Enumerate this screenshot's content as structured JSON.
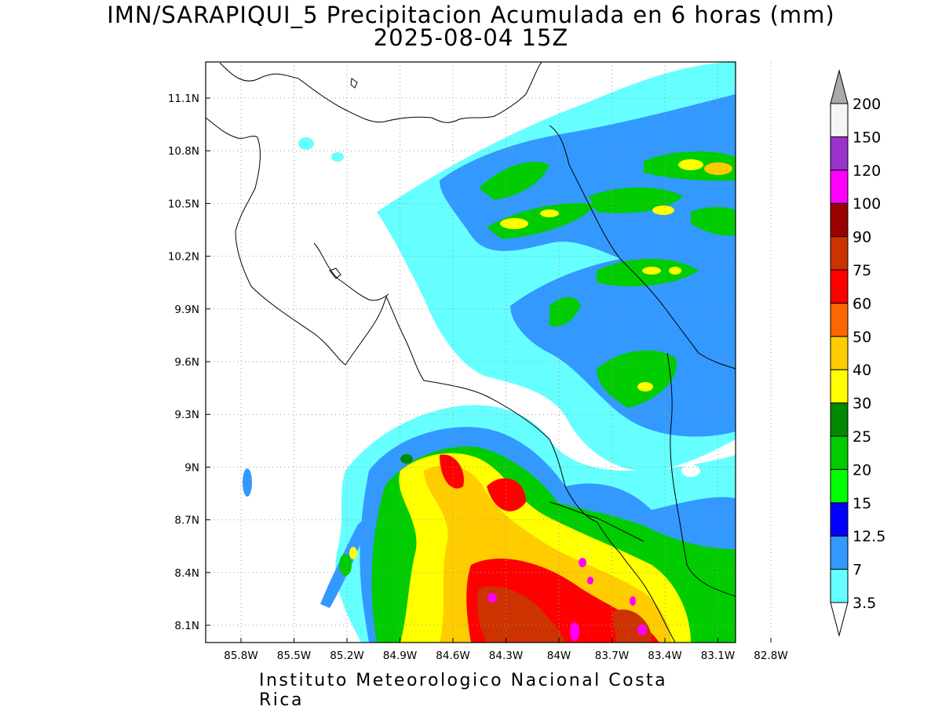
{
  "title": "IMN/SARAPIQUI_5 Precipitacion Acumulada en 6 horas (mm)",
  "subtitle": "2025-08-04 15Z",
  "footer": "Instituto Meteorologico Nacional Costa Rica",
  "map": {
    "lon_labels": [
      "85.8W",
      "85.5W",
      "85.2W",
      "84.9W",
      "84.6W",
      "84.3W",
      "84W",
      "83.7W",
      "83.4W",
      "83.1W",
      "82.8W"
    ],
    "lat_labels": [
      "11.1N",
      "10.8N",
      "10.5N",
      "10.2N",
      "9.9N",
      "9.6N",
      "9.3N",
      "9N",
      "8.7N",
      "8.4N",
      "8.1N"
    ],
    "lon_range": [
      -86.0,
      -83.0
    ],
    "lat_range": [
      8.0,
      11.3
    ]
  },
  "colorbar": {
    "labels": [
      "3.5",
      "7",
      "12.5",
      "15",
      "20",
      "25",
      "30",
      "40",
      "50",
      "60",
      "75",
      "90",
      "100",
      "120",
      "150",
      "200"
    ],
    "colors": [
      "#ffffff",
      "#66ffff",
      "#3399ff",
      "#0000ff",
      "#00ff00",
      "#00cc00",
      "#008800",
      "#ffff00",
      "#ffcc00",
      "#ff6600",
      "#ff0000",
      "#cc3300",
      "#990000",
      "#ff00ff",
      "#9933cc",
      "#f5f5f5",
      "#aaaaaa"
    ]
  }
}
